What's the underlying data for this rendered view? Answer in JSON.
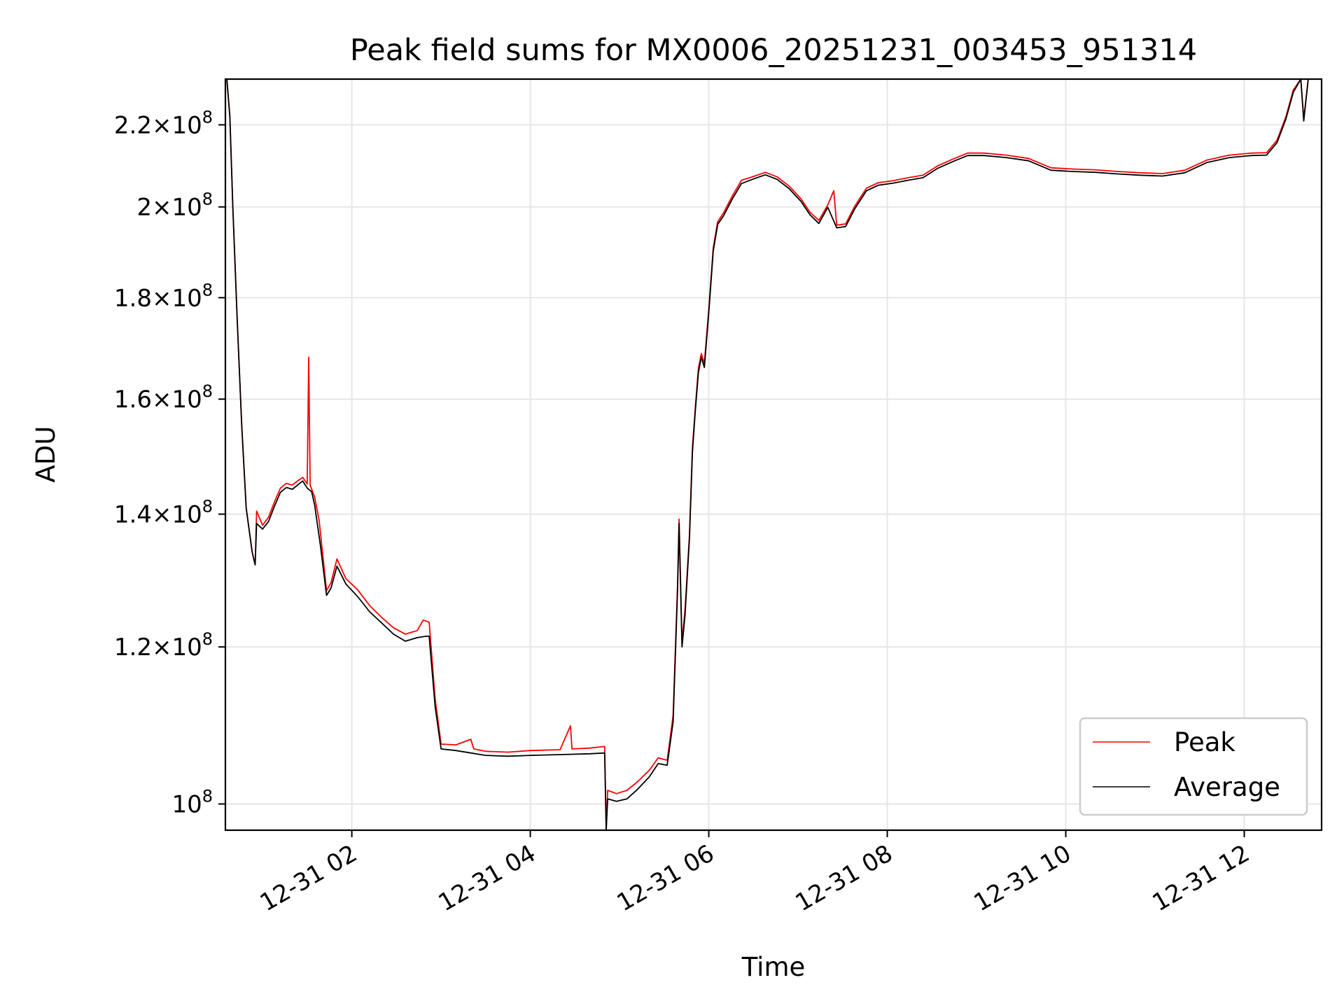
{
  "chart_data": {
    "type": "line",
    "title": "Peak field sums for MX0006_20251231_003453_951314",
    "xlabel": "Time",
    "ylabel": "ADU",
    "yscale": "log",
    "grid": true,
    "legend": "lower-right",
    "xlim": [
      "12-31 00:35",
      "12-31 12:52"
    ],
    "ylim": [
      97000000,
      232000000
    ],
    "x_ticks": [
      {
        "value": "12-31 02:00",
        "label": "12-31 02"
      },
      {
        "value": "12-31 04:00",
        "label": "12-31 04"
      },
      {
        "value": "12-31 06:00",
        "label": "12-31 06"
      },
      {
        "value": "12-31 08:00",
        "label": "12-31 08"
      },
      {
        "value": "12-31 10:00",
        "label": "12-31 10"
      },
      {
        "value": "12-31 12:00",
        "label": "12-31 12"
      }
    ],
    "y_ticks": [
      {
        "value": 100000000,
        "mantissa": "",
        "exp": "8"
      },
      {
        "value": 120000000,
        "mantissa": "1.2",
        "exp": "8"
      },
      {
        "value": 140000000,
        "mantissa": "1.4",
        "exp": "8"
      },
      {
        "value": 160000000,
        "mantissa": "1.6",
        "exp": "8"
      },
      {
        "value": 180000000,
        "mantissa": "1.8",
        "exp": "8"
      },
      {
        "value": 200000000,
        "mantissa": "2",
        "exp": "8"
      },
      {
        "value": 220000000,
        "mantissa": "2.2",
        "exp": "8"
      }
    ],
    "series": [
      {
        "name": "Average",
        "color": "#000000",
        "points": [
          [
            "12-31 00:36",
            232000000
          ],
          [
            "12-31 00:38",
            222000000
          ],
          [
            "12-31 00:40",
            200000000
          ],
          [
            "12-31 00:43",
            175000000
          ],
          [
            "12-31 00:46",
            155000000
          ],
          [
            "12-31 00:49",
            141000000
          ],
          [
            "12-31 00:53",
            134000000
          ],
          [
            "12-31 00:55",
            132000000
          ],
          [
            "12-31 00:56",
            138500000
          ],
          [
            "12-31 01:00",
            137600000
          ],
          [
            "12-31 01:04",
            138800000
          ],
          [
            "12-31 01:08",
            141300000
          ],
          [
            "12-31 01:12",
            143600000
          ],
          [
            "12-31 01:16",
            144400000
          ],
          [
            "12-31 01:20",
            144100000
          ],
          [
            "12-31 01:24",
            144900000
          ],
          [
            "12-31 01:27",
            145500000
          ],
          [
            "12-31 01:30",
            144300000
          ],
          [
            "12-31 01:33",
            143700000
          ],
          [
            "12-31 01:35",
            141500000
          ],
          [
            "12-31 01:39",
            134800000
          ],
          [
            "12-31 01:43",
            127400000
          ],
          [
            "12-31 01:46",
            128500000
          ],
          [
            "12-31 01:50",
            131800000
          ],
          [
            "12-31 01:56",
            129100000
          ],
          [
            "12-31 02:04",
            127200000
          ],
          [
            "12-31 02:12",
            125000000
          ],
          [
            "12-31 02:20",
            123400000
          ],
          [
            "12-31 02:28",
            121800000
          ],
          [
            "12-31 02:36",
            120800000
          ],
          [
            "12-31 02:44",
            121300000
          ],
          [
            "12-31 02:50",
            121500000
          ],
          [
            "12-31 02:52",
            121500000
          ],
          [
            "12-31 02:56",
            112000000
          ],
          [
            "12-31 03:00",
            106600000
          ],
          [
            "12-31 03:10",
            106400000
          ],
          [
            "12-31 03:20",
            106100000
          ],
          [
            "12-31 03:30",
            105800000
          ],
          [
            "12-31 03:45",
            105700000
          ],
          [
            "12-31 04:00",
            105800000
          ],
          [
            "12-31 04:20",
            105900000
          ],
          [
            "12-31 04:40",
            106000000
          ],
          [
            "12-31 04:50",
            106100000
          ],
          [
            "12-31 04:51",
            97000000
          ],
          [
            "12-31 04:52",
            100600000
          ],
          [
            "12-31 04:58",
            100300000
          ],
          [
            "12-31 05:05",
            100600000
          ],
          [
            "12-31 05:12",
            101700000
          ],
          [
            "12-31 05:20",
            103200000
          ],
          [
            "12-31 05:26",
            104800000
          ],
          [
            "12-31 05:32",
            104600000
          ],
          [
            "12-31 05:36",
            110000000
          ],
          [
            "12-31 05:39",
            128000000
          ],
          [
            "12-31 05:40",
            138500000
          ],
          [
            "12-31 05:42",
            120000000
          ],
          [
            "12-31 05:44",
            124500000
          ],
          [
            "12-31 05:47",
            136000000
          ],
          [
            "12-31 05:49",
            150500000
          ],
          [
            "12-31 05:51",
            158000000
          ],
          [
            "12-31 05:53",
            165000000
          ],
          [
            "12-31 05:55",
            168000000
          ],
          [
            "12-31 05:57",
            166000000
          ],
          [
            "12-31 06:00",
            177000000
          ],
          [
            "12-31 06:03",
            190000000
          ],
          [
            "12-31 06:06",
            196000000
          ],
          [
            "12-31 06:10",
            198000000
          ],
          [
            "12-31 06:16",
            202000000
          ],
          [
            "12-31 06:22",
            205500000
          ],
          [
            "12-31 06:30",
            206600000
          ],
          [
            "12-31 06:38",
            207600000
          ],
          [
            "12-31 06:46",
            206500000
          ],
          [
            "12-31 06:54",
            204300000
          ],
          [
            "12-31 07:02",
            201300000
          ],
          [
            "12-31 07:08",
            198200000
          ],
          [
            "12-31 07:14",
            196200000
          ],
          [
            "12-31 07:20",
            199900000
          ],
          [
            "12-31 07:26",
            195200000
          ],
          [
            "12-31 07:32",
            195500000
          ],
          [
            "12-31 07:38",
            199500000
          ],
          [
            "12-31 07:46",
            203800000
          ],
          [
            "12-31 07:54",
            205100000
          ],
          [
            "12-31 08:04",
            205600000
          ],
          [
            "12-31 08:14",
            206300000
          ],
          [
            "12-31 08:24",
            206900000
          ],
          [
            "12-31 08:34",
            209200000
          ],
          [
            "12-31 08:44",
            210800000
          ],
          [
            "12-31 08:54",
            212300000
          ],
          [
            "12-31 09:05",
            212300000
          ],
          [
            "12-31 09:20",
            211800000
          ],
          [
            "12-31 09:35",
            211000000
          ],
          [
            "12-31 09:50",
            208700000
          ],
          [
            "12-31 10:05",
            208400000
          ],
          [
            "12-31 10:20",
            208200000
          ],
          [
            "12-31 10:35",
            207800000
          ],
          [
            "12-31 10:50",
            207500000
          ],
          [
            "12-31 11:05",
            207300000
          ],
          [
            "12-31 11:20",
            208100000
          ],
          [
            "12-31 11:35",
            210600000
          ],
          [
            "12-31 11:50",
            211800000
          ],
          [
            "12-31 12:05",
            212300000
          ],
          [
            "12-31 12:15",
            212400000
          ],
          [
            "12-31 12:22",
            215500000
          ],
          [
            "12-31 12:28",
            221500000
          ],
          [
            "12-31 12:33",
            228500000
          ],
          [
            "12-31 12:38",
            232000000
          ],
          [
            "12-31 12:40",
            221000000
          ],
          [
            "12-31 12:43",
            232000000
          ],
          [
            "12-31 12:52",
            232000000
          ]
        ]
      },
      {
        "name": "Peak",
        "color": "#ff0000",
        "points": [
          [
            "12-31 00:36",
            232000000
          ],
          [
            "12-31 00:38",
            222000000
          ],
          [
            "12-31 00:40",
            200000000
          ],
          [
            "12-31 00:43",
            175000000
          ],
          [
            "12-31 00:46",
            155000000
          ],
          [
            "12-31 00:49",
            141000000
          ],
          [
            "12-31 00:53",
            134000000
          ],
          [
            "12-31 00:55",
            132000000
          ],
          [
            "12-31 00:56",
            140500000
          ],
          [
            "12-31 01:00",
            138200000
          ],
          [
            "12-31 01:04",
            139500000
          ],
          [
            "12-31 01:08",
            142000000
          ],
          [
            "12-31 01:12",
            144300000
          ],
          [
            "12-31 01:16",
            145100000
          ],
          [
            "12-31 01:20",
            144800000
          ],
          [
            "12-31 01:24",
            145600000
          ],
          [
            "12-31 01:27",
            146100000
          ],
          [
            "12-31 01:30",
            145000000
          ],
          [
            "12-31 01:31",
            168000000
          ],
          [
            "12-31 01:32",
            144800000
          ],
          [
            "12-31 01:35",
            142800000
          ],
          [
            "12-31 01:38",
            139000000
          ],
          [
            "12-31 01:43",
            128100000
          ],
          [
            "12-31 01:46",
            129300000
          ],
          [
            "12-31 01:50",
            132900000
          ],
          [
            "12-31 01:56",
            129900000
          ],
          [
            "12-31 02:04",
            128200000
          ],
          [
            "12-31 02:12",
            125900000
          ],
          [
            "12-31 02:20",
            124200000
          ],
          [
            "12-31 02:28",
            122700000
          ],
          [
            "12-31 02:36",
            121800000
          ],
          [
            "12-31 02:44",
            122300000
          ],
          [
            "12-31 02:48",
            123800000
          ],
          [
            "12-31 02:52",
            123500000
          ],
          [
            "12-31 02:56",
            113000000
          ],
          [
            "12-31 03:00",
            107200000
          ],
          [
            "12-31 03:10",
            107100000
          ],
          [
            "12-31 03:20",
            107800000
          ],
          [
            "12-31 03:22",
            106600000
          ],
          [
            "12-31 03:30",
            106300000
          ],
          [
            "12-31 03:45",
            106200000
          ],
          [
            "12-31 04:00",
            106400000
          ],
          [
            "12-31 04:20",
            106500000
          ],
          [
            "12-31 04:27",
            109500000
          ],
          [
            "12-31 04:28",
            106600000
          ],
          [
            "12-31 04:40",
            106700000
          ],
          [
            "12-31 04:50",
            106900000
          ],
          [
            "12-31 04:51",
            97000000
          ],
          [
            "12-31 04:52",
            101600000
          ],
          [
            "12-31 04:58",
            101200000
          ],
          [
            "12-31 05:05",
            101600000
          ],
          [
            "12-31 05:12",
            102600000
          ],
          [
            "12-31 05:20",
            104000000
          ],
          [
            "12-31 05:26",
            105500000
          ],
          [
            "12-31 05:32",
            105200000
          ],
          [
            "12-31 05:36",
            110800000
          ],
          [
            "12-31 05:39",
            128800000
          ],
          [
            "12-31 05:40",
            139200000
          ],
          [
            "12-31 05:42",
            120600000
          ],
          [
            "12-31 05:44",
            125300000
          ],
          [
            "12-31 05:47",
            136600000
          ],
          [
            "12-31 05:49",
            151300000
          ],
          [
            "12-31 05:51",
            158600000
          ],
          [
            "12-31 05:53",
            165800000
          ],
          [
            "12-31 05:55",
            168700000
          ],
          [
            "12-31 05:57",
            166700000
          ],
          [
            "12-31 06:00",
            177700000
          ],
          [
            "12-31 06:03",
            190700000
          ],
          [
            "12-31 06:06",
            196600000
          ],
          [
            "12-31 06:10",
            198700000
          ],
          [
            "12-31 06:16",
            202700000
          ],
          [
            "12-31 06:22",
            206300000
          ],
          [
            "12-31 06:30",
            207200000
          ],
          [
            "12-31 06:38",
            208200000
          ],
          [
            "12-31 06:46",
            207100000
          ],
          [
            "12-31 06:54",
            204900000
          ],
          [
            "12-31 07:02",
            201900000
          ],
          [
            "12-31 07:08",
            198800000
          ],
          [
            "12-31 07:14",
            196900000
          ],
          [
            "12-31 07:20",
            200500000
          ],
          [
            "12-31 07:24",
            203800000
          ],
          [
            "12-31 07:26",
            195800000
          ],
          [
            "12-31 07:32",
            196100000
          ],
          [
            "12-31 07:38",
            200100000
          ],
          [
            "12-31 07:46",
            204400000
          ],
          [
            "12-31 07:54",
            205700000
          ],
          [
            "12-31 08:04",
            206200000
          ],
          [
            "12-31 08:14",
            206900000
          ],
          [
            "12-31 08:24",
            207500000
          ],
          [
            "12-31 08:34",
            209800000
          ],
          [
            "12-31 08:44",
            211400000
          ],
          [
            "12-31 08:54",
            212900000
          ],
          [
            "12-31 09:05",
            212900000
          ],
          [
            "12-31 09:20",
            212400000
          ],
          [
            "12-31 09:35",
            211600000
          ],
          [
            "12-31 09:50",
            209300000
          ],
          [
            "12-31 10:05",
            209000000
          ],
          [
            "12-31 10:20",
            208800000
          ],
          [
            "12-31 10:35",
            208400000
          ],
          [
            "12-31 10:50",
            208100000
          ],
          [
            "12-31 11:05",
            207900000
          ],
          [
            "12-31 11:20",
            208700000
          ],
          [
            "12-31 11:35",
            211200000
          ],
          [
            "12-31 11:50",
            212400000
          ],
          [
            "12-31 12:05",
            212900000
          ],
          [
            "12-31 12:15",
            213000000
          ],
          [
            "12-31 12:22",
            216100000
          ],
          [
            "12-31 12:28",
            222100000
          ],
          [
            "12-31 12:33",
            229100000
          ],
          [
            "12-31 12:38",
            232000000
          ],
          [
            "12-31 12:40",
            221600000
          ],
          [
            "12-31 12:43",
            232000000
          ],
          [
            "12-31 12:52",
            232000000
          ]
        ]
      }
    ]
  }
}
